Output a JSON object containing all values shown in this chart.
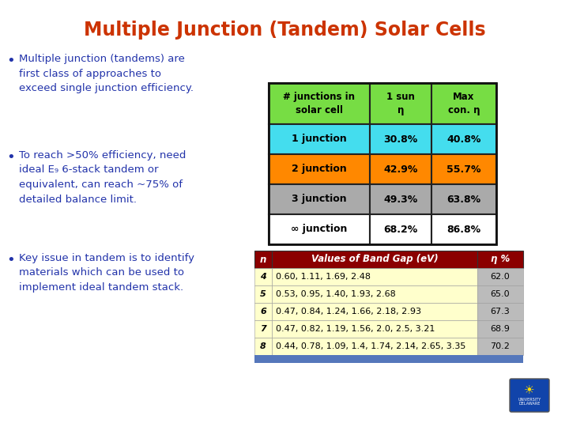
{
  "title": "Multiple Junction (Tandem) Solar Cells",
  "title_color": "#CC3300",
  "bg_color": "#FFFFFF",
  "bullet_color": "#2233AA",
  "bullet_points_line1": [
    "Multiple junction (tandems) are",
    "To reach >50% efficiency, need",
    "Key issue in tandem is to identify"
  ],
  "bullet_points_line2": [
    "first class of approaches to",
    "ideal E₉ 6-stack tandem or",
    "materials which can be used to"
  ],
  "bullet_points_line3": [
    "exceed single junction efficiency.",
    "equivalent, can reach ~75% of",
    "implement ideal tandem stack."
  ],
  "bullet_points_line4": [
    "",
    "detailed balance limit.",
    ""
  ],
  "table1_header": [
    "# junctions in\nsolar cell",
    "1 sun\nη",
    "Max\ncon. η"
  ],
  "table1_header_color": "#77DD44",
  "table1_rows": [
    [
      "1 junction",
      "30.8%",
      "40.8%"
    ],
    [
      "2 junction",
      "42.9%",
      "55.7%"
    ],
    [
      "3 junction",
      "49.3%",
      "63.8%"
    ],
    [
      "∞ junction",
      "68.2%",
      "86.8%"
    ]
  ],
  "table1_row_colors": [
    "#44DDEE",
    "#FF8800",
    "#AAAAAA",
    "#FFFFFF"
  ],
  "table2_header": [
    "n",
    "Values of Band Gap (eV)",
    "η %"
  ],
  "table2_header_color": "#8B0000",
  "table2_rows": [
    [
      "4",
      "0.60, 1.11, 1.69, 2.48",
      "62.0"
    ],
    [
      "5",
      "0.53, 0.95, 1.40, 1.93, 2.68",
      "65.0"
    ],
    [
      "6",
      "0.47, 0.84, 1.24, 1.66, 2.18, 2.93",
      "67.3"
    ],
    [
      "7",
      "0.47, 0.82, 1.19, 1.56, 2.0, 2.5, 3.21",
      "68.9"
    ],
    [
      "8",
      "0.44, 0.78, 1.09, 1.4, 1.74, 2.14, 2.65, 3.35",
      "70.2"
    ]
  ],
  "table2_body_color": "#FFFFCC",
  "table2_eta_col_color": "#BBBBBB",
  "bottom_bar_color": "#5577BB",
  "slide_bg": "#FFFFFF"
}
